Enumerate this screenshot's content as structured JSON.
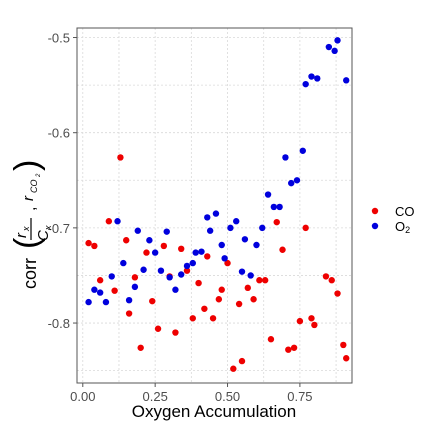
{
  "chart_data": {
    "type": "scatter",
    "xlabel": "Oxygen Accumulation",
    "ylabel": {
      "func": "corr",
      "frac_num": "r",
      "frac_num_sub": "x",
      "frac_den": "C",
      "frac_den_sub": "x",
      "comma": ",",
      "r": "r",
      "r_sub": "CO",
      "r_sub2": "2"
    },
    "xlim": [
      -0.02,
      0.93
    ],
    "ylim": [
      -0.863,
      -0.49
    ],
    "xticks": [
      0.0,
      0.25,
      0.5,
      0.75
    ],
    "xtick_labels": [
      "0.00",
      "0.25",
      "0.50",
      "0.75"
    ],
    "yticks": [
      -0.8,
      -0.7,
      -0.6,
      -0.5
    ],
    "ytick_labels": [
      "-0.8",
      "-0.7",
      "-0.6",
      "-0.5"
    ],
    "grid": true,
    "legend_position": "right",
    "series": [
      {
        "name": "CO",
        "name_sub": "",
        "color": "#ee0000",
        "points": [
          [
            0.02,
            -0.716
          ],
          [
            0.04,
            -0.719
          ],
          [
            0.06,
            -0.755
          ],
          [
            0.09,
            -0.693
          ],
          [
            0.11,
            -0.766
          ],
          [
            0.13,
            -0.626
          ],
          [
            0.15,
            -0.713
          ],
          [
            0.16,
            -0.79
          ],
          [
            0.18,
            -0.752
          ],
          [
            0.2,
            -0.826
          ],
          [
            0.22,
            -0.726
          ],
          [
            0.24,
            -0.777
          ],
          [
            0.26,
            -0.806
          ],
          [
            0.28,
            -0.719
          ],
          [
            0.3,
            -0.751
          ],
          [
            0.32,
            -0.81
          ],
          [
            0.34,
            -0.722
          ],
          [
            0.36,
            -0.745
          ],
          [
            0.38,
            -0.795
          ],
          [
            0.4,
            -0.758
          ],
          [
            0.42,
            -0.785
          ],
          [
            0.43,
            -0.73
          ],
          [
            0.45,
            -0.795
          ],
          [
            0.47,
            -0.775
          ],
          [
            0.48,
            -0.765
          ],
          [
            0.5,
            -0.737
          ],
          [
            0.52,
            -0.848
          ],
          [
            0.55,
            -0.84
          ],
          [
            0.54,
            -0.78
          ],
          [
            0.57,
            -0.763
          ],
          [
            0.59,
            -0.775
          ],
          [
            0.61,
            -0.755
          ],
          [
            0.63,
            -0.755
          ],
          [
            0.65,
            -0.817
          ],
          [
            0.67,
            -0.694
          ],
          [
            0.69,
            -0.723
          ],
          [
            0.71,
            -0.828
          ],
          [
            0.73,
            -0.826
          ],
          [
            0.75,
            -0.798
          ],
          [
            0.77,
            -0.7
          ],
          [
            0.79,
            -0.795
          ],
          [
            0.8,
            -0.802
          ],
          [
            0.84,
            -0.751
          ],
          [
            0.86,
            -0.755
          ],
          [
            0.88,
            -0.769
          ],
          [
            0.9,
            -0.823
          ],
          [
            0.91,
            -0.837
          ]
        ]
      },
      {
        "name": "O",
        "name_sub": "2",
        "color": "#0000dd",
        "points": [
          [
            0.02,
            -0.778
          ],
          [
            0.04,
            -0.765
          ],
          [
            0.06,
            -0.768
          ],
          [
            0.08,
            -0.778
          ],
          [
            0.1,
            -0.751
          ],
          [
            0.12,
            -0.693
          ],
          [
            0.14,
            -0.737
          ],
          [
            0.16,
            -0.776
          ],
          [
            0.18,
            -0.762
          ],
          [
            0.19,
            -0.703
          ],
          [
            0.21,
            -0.744
          ],
          [
            0.23,
            -0.713
          ],
          [
            0.25,
            -0.726
          ],
          [
            0.27,
            -0.745
          ],
          [
            0.29,
            -0.704
          ],
          [
            0.3,
            -0.752
          ],
          [
            0.32,
            -0.765
          ],
          [
            0.34,
            -0.749
          ],
          [
            0.36,
            -0.74
          ],
          [
            0.38,
            -0.737
          ],
          [
            0.39,
            -0.726
          ],
          [
            0.41,
            -0.725
          ],
          [
            0.43,
            -0.689
          ],
          [
            0.44,
            -0.703
          ],
          [
            0.46,
            -0.685
          ],
          [
            0.48,
            -0.718
          ],
          [
            0.49,
            -0.732
          ],
          [
            0.51,
            -0.7
          ],
          [
            0.53,
            -0.693
          ],
          [
            0.55,
            -0.746
          ],
          [
            0.56,
            -0.712
          ],
          [
            0.58,
            -0.75
          ],
          [
            0.6,
            -0.718
          ],
          [
            0.62,
            -0.7
          ],
          [
            0.64,
            -0.665
          ],
          [
            0.66,
            -0.678
          ],
          [
            0.68,
            -0.678
          ],
          [
            0.7,
            -0.626
          ],
          [
            0.72,
            -0.653
          ],
          [
            0.74,
            -0.65
          ],
          [
            0.76,
            -0.619
          ],
          [
            0.77,
            -0.549
          ],
          [
            0.79,
            -0.541
          ],
          [
            0.81,
            -0.543
          ],
          [
            0.85,
            -0.51
          ],
          [
            0.87,
            -0.514
          ],
          [
            0.88,
            -0.503
          ],
          [
            0.91,
            -0.545
          ]
        ]
      }
    ]
  }
}
